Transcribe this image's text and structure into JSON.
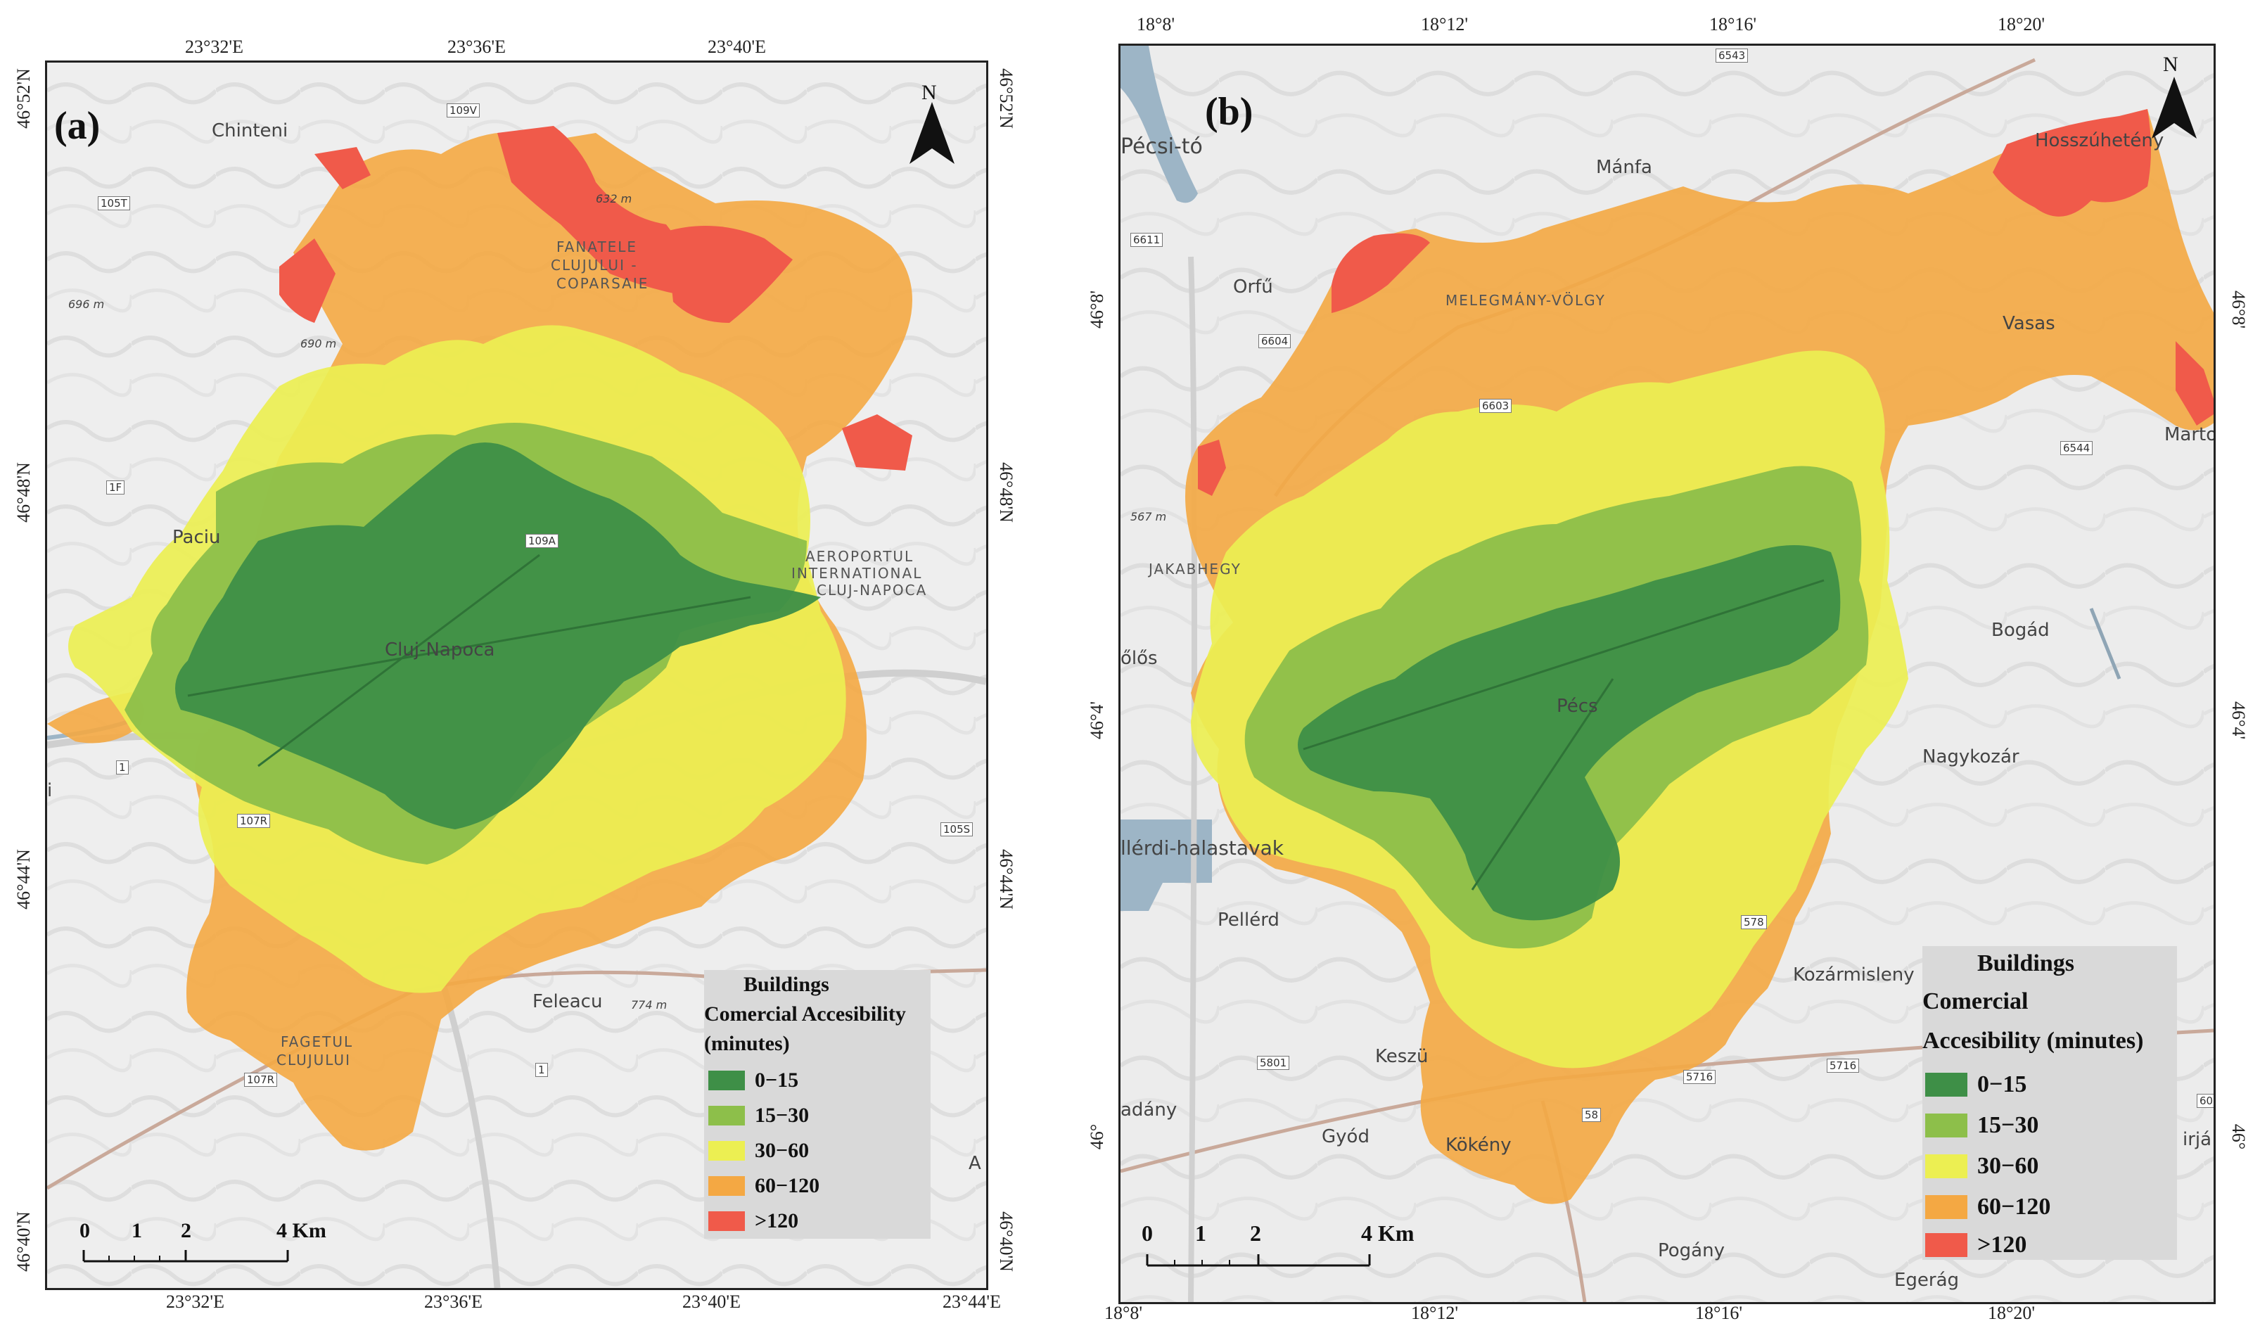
{
  "colors": {
    "c0_15": "#3e8f47",
    "c15_30": "#8dbf4a",
    "c30_60": "#ecef52",
    "c60_120": "#f4a843",
    "c120": "#f05a4a",
    "water": "#9db5c6",
    "road": "#c9a99a"
  },
  "panel_a": {
    "label": "(a)",
    "top_ticks": [
      "23°32'E",
      "23°36'E",
      "23°40'E"
    ],
    "bottom_ticks": [
      "23°32'E",
      "23°36'E",
      "23°40'E",
      "23°44'E"
    ],
    "left_ticks": [
      "46°52'N",
      "46°48'N",
      "46°44'N",
      "46°40'N"
    ],
    "right_ticks": [
      "46°52'N",
      "46°48'N",
      "46°44'N",
      "46°40'N"
    ],
    "places": [
      "Chinteni",
      "Paciu",
      "Cluj-Napoca",
      "Feleacu",
      "FAGETUL",
      "CLUJULUI",
      "AEROPORTUL",
      "INTERNATIONAL",
      "CLUJ-NAPOCA",
      "FANATELE",
      "CLUJULUI -",
      "COPARSAIE",
      "696 m",
      "690 m",
      "632 m",
      "774 m",
      "i",
      "A"
    ],
    "roads": [
      "109V",
      "105T",
      "1F",
      "1",
      "107R",
      "107R",
      "1",
      "105S",
      "109A"
    ],
    "north": "N",
    "legend": {
      "title1": "Buildings",
      "title2": "Comercial Accesibility",
      "title3": "(minutes)",
      "items": [
        "0−15",
        "15−30",
        "30−60",
        "60−120",
        ">120"
      ]
    },
    "scale": {
      "labels": [
        "0",
        "1",
        "2",
        "4 Km"
      ]
    }
  },
  "panel_b": {
    "label": "(b)",
    "top_ticks": [
      "18°8'",
      "18°12'",
      "18°16'",
      "18°20'"
    ],
    "bottom_ticks": [
      "18°8'",
      "18°12'",
      "18°16'",
      "18°20'"
    ],
    "left_ticks": [
      "46°8'",
      "46°4'",
      "46°"
    ],
    "right_ticks": [
      "46°8'",
      "46°4'",
      "46°"
    ],
    "places": [
      "Pécsi-tó",
      "Mánfa",
      "Hosszúhetény",
      "Orfű",
      "MELEGMÁNY-VÖLGY",
      "Vasas",
      "Marton",
      "JAKABHEGY",
      "567 m",
      "Bogád",
      "őlős",
      "Pécs",
      "Nagykozár",
      "llérdi-halastavak",
      "Pellérd",
      "Kozármisleny",
      "Keszü",
      "adány",
      "Gyód",
      "Kökény",
      "Pogány",
      "Egerág",
      "irjá"
    ],
    "roads": [
      "6543",
      "6611",
      "6604",
      "6603",
      "6544",
      "578",
      "5801",
      "5716",
      "5716",
      "58",
      "60"
    ],
    "north": "N",
    "legend": {
      "title1": "Buildings",
      "title2": "Comercial",
      "title3": "Accesibility (minutes)",
      "items": [
        "0−15",
        "15−30",
        "30−60",
        "60−120",
        ">120"
      ]
    },
    "scale": {
      "labels": [
        "0",
        "1",
        "2",
        "4 Km"
      ]
    }
  }
}
